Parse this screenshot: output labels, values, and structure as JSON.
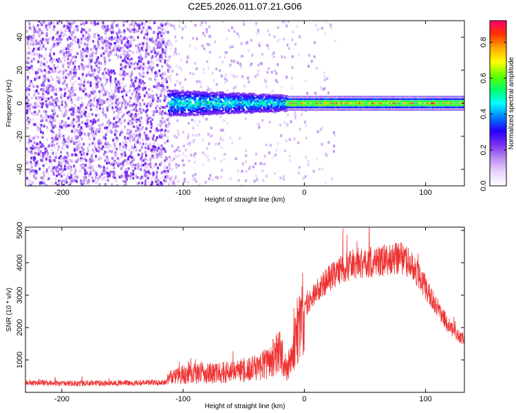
{
  "chart_data": [
    {
      "type": "heatmap",
      "title": "C2E5.2026.011.07.21.G06",
      "xlabel": "Height of straight line (km)",
      "ylabel": "Frequency (Hz)",
      "xlim": [
        -230,
        132
      ],
      "ylim": [
        -50,
        50
      ],
      "x_ticks": [
        -200,
        -100,
        0,
        100
      ],
      "y_ticks": [
        -40,
        -20,
        0,
        20,
        40
      ],
      "colorbar": {
        "label": "Normalized spectral amplitude",
        "range": [
          0.0,
          0.92
        ],
        "ticks": [
          0.0,
          0.2,
          0.4,
          0.6,
          0.8
        ],
        "tick_labels": [
          "0.0",
          "0.2",
          "0.4",
          "0.6",
          "0.8"
        ],
        "colors": [
          "#ffffff",
          "#e9d6fb",
          "#b98cf0",
          "#7a2ef0",
          "#2200ff",
          "#0080ff",
          "#00ffff",
          "#00ff66",
          "#66ff00",
          "#ffff00",
          "#ffaa00",
          "#ff3300",
          "#ff0066"
        ]
      },
      "regions": [
        {
          "name": "noise",
          "x_from": -230,
          "x_to": -113,
          "freq_spread": [
            -50,
            50
          ],
          "amplitude": [
            0.05,
            0.25
          ]
        },
        {
          "name": "transition",
          "x_from": -113,
          "x_to": -15,
          "freq_spread": [
            -8,
            8
          ],
          "amplitude": [
            0.2,
            0.55
          ]
        },
        {
          "name": "signal_line",
          "x_from": -15,
          "x_to": 132,
          "freq_center": 0,
          "amplitude_peak": 0.9
        }
      ]
    },
    {
      "type": "line",
      "xlabel": "Height of straight line (km)",
      "ylabel": "SNR (10 * v/v)",
      "xlim": [
        -230,
        132
      ],
      "ylim": [
        0,
        5100
      ],
      "x_ticks": [
        -200,
        -100,
        0,
        100
      ],
      "y_ticks": [
        1000,
        2000,
        3000,
        4000,
        5000
      ],
      "series": [
        {
          "name": "SNR",
          "color": "#ee3333",
          "x": [
            -230,
            -200,
            -150,
            -115,
            -110,
            -100,
            -80,
            -60,
            -40,
            -30,
            -20,
            -15,
            -10,
            0,
            10,
            20,
            30,
            40,
            50,
            60,
            70,
            80,
            90,
            100,
            110,
            120,
            132
          ],
          "values": [
            300,
            280,
            290,
            300,
            450,
            550,
            600,
            620,
            750,
            900,
            1300,
            700,
            1100,
            2600,
            3100,
            3500,
            3800,
            3950,
            4000,
            4050,
            4100,
            4150,
            3900,
            3200,
            2600,
            2000,
            1600
          ]
        }
      ]
    }
  ]
}
